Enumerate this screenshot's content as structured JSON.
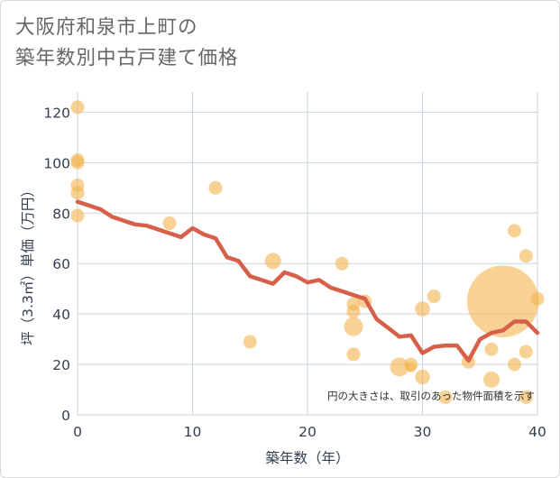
{
  "title_line1": "大阪府和泉市上町の",
  "title_line2": "築年数別中古戸建て価格",
  "chart_data": {
    "type": "scatter+line",
    "title": "大阪府和泉市上町の築年数別中古戸建て価格",
    "xlabel": "築年数（年）",
    "ylabel": "坪（3.3㎡）単価（万円）",
    "xlim": [
      0,
      40
    ],
    "ylim": [
      0,
      128
    ],
    "xticks": [
      0,
      10,
      20,
      30,
      40
    ],
    "yticks": [
      0,
      20,
      40,
      60,
      80,
      100,
      120
    ],
    "note": "円の大きさは、取引のあった物件面積を示す",
    "colors": {
      "points": "#f3b552",
      "line": "#d7604a",
      "grid": "#c9d3de",
      "plot_bg": "#ffffff"
    },
    "points": [
      {
        "x": 0,
        "y": 122,
        "s": 1
      },
      {
        "x": 0,
        "y": 101,
        "s": 1
      },
      {
        "x": 0,
        "y": 100,
        "s": 1
      },
      {
        "x": 0,
        "y": 91,
        "s": 1
      },
      {
        "x": 0,
        "y": 88,
        "s": 1
      },
      {
        "x": 0,
        "y": 79,
        "s": 1
      },
      {
        "x": 8,
        "y": 76,
        "s": 1
      },
      {
        "x": 12,
        "y": 90,
        "s": 1
      },
      {
        "x": 15,
        "y": 29,
        "s": 1
      },
      {
        "x": 17,
        "y": 61,
        "s": 1.2
      },
      {
        "x": 23,
        "y": 60,
        "s": 1
      },
      {
        "x": 24,
        "y": 44,
        "s": 1
      },
      {
        "x": 24,
        "y": 41,
        "s": 1
      },
      {
        "x": 24,
        "y": 35,
        "s": 1.4
      },
      {
        "x": 24,
        "y": 24,
        "s": 1
      },
      {
        "x": 25,
        "y": 45,
        "s": 1
      },
      {
        "x": 28,
        "y": 19,
        "s": 1.4
      },
      {
        "x": 29,
        "y": 20,
        "s": 1
      },
      {
        "x": 29,
        "y": 19,
        "s": 0.8
      },
      {
        "x": 30,
        "y": 42,
        "s": 1.1
      },
      {
        "x": 30,
        "y": 15,
        "s": 1.1
      },
      {
        "x": 31,
        "y": 47,
        "s": 1
      },
      {
        "x": 32,
        "y": 7,
        "s": 1
      },
      {
        "x": 34,
        "y": 21,
        "s": 1
      },
      {
        "x": 36,
        "y": 26,
        "s": 1
      },
      {
        "x": 36,
        "y": 14,
        "s": 1.2
      },
      {
        "x": 37,
        "y": 45,
        "s": 5.3
      },
      {
        "x": 38,
        "y": 73,
        "s": 1
      },
      {
        "x": 38,
        "y": 20,
        "s": 1
      },
      {
        "x": 39,
        "y": 63,
        "s": 1
      },
      {
        "x": 39,
        "y": 25,
        "s": 1
      },
      {
        "x": 39,
        "y": 7,
        "s": 1
      },
      {
        "x": 40,
        "y": 46,
        "s": 1
      }
    ],
    "line": {
      "x": [
        0,
        1,
        2,
        3,
        4,
        5,
        6,
        7,
        8,
        9,
        10,
        11,
        12,
        13,
        14,
        15,
        16,
        17,
        18,
        19,
        20,
        21,
        22,
        23,
        24,
        25,
        26,
        27,
        28,
        29,
        30,
        31,
        32,
        33,
        34,
        35,
        36,
        37,
        38,
        39,
        40
      ],
      "y": [
        84.5,
        83,
        81.5,
        78.5,
        77,
        75.5,
        75,
        73.5,
        72,
        70.5,
        74,
        71.5,
        70,
        62.5,
        61,
        55,
        53.5,
        52,
        56.5,
        55,
        52.5,
        53.5,
        50.5,
        49,
        47.5,
        46,
        38,
        34.5,
        31,
        31.5,
        24.5,
        27,
        27.5,
        27.5,
        21.5,
        30,
        32.5,
        33.5,
        37,
        37,
        32.5
      ]
    }
  }
}
